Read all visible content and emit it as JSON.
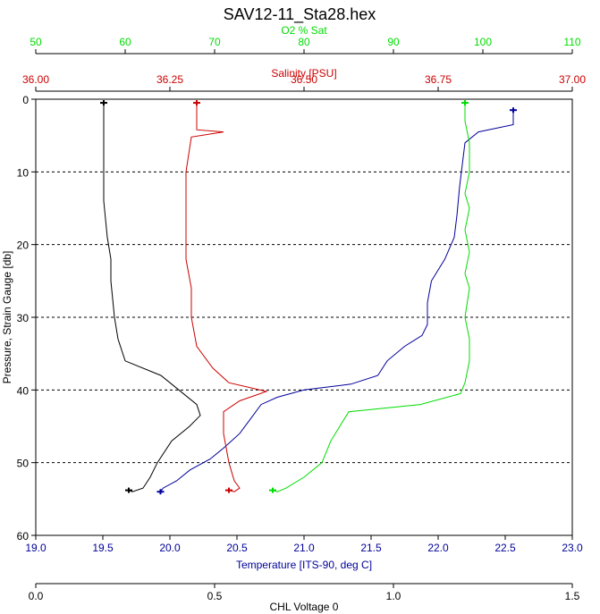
{
  "chart_data": {
    "type": "line",
    "title": "SAV12-11_Sta28.hex",
    "colors": {
      "oxygen": "#00dd00",
      "salinity": "#cc0000",
      "temperature": "#000099",
      "chl": "#000000",
      "grid": "#000000"
    },
    "y_axis": {
      "label": "Pressure, Strain Gauge [db]",
      "range": [
        0,
        60
      ],
      "inverted": true,
      "ticks": [
        "0",
        "10",
        "20",
        "30",
        "40",
        "50",
        "60"
      ],
      "gridlines": [
        10,
        20,
        30,
        40,
        50
      ]
    },
    "x_axes": [
      {
        "key": "oxygen",
        "label": "O2 % Sat",
        "position": "top-1",
        "range": [
          50,
          110
        ],
        "ticks": [
          "50",
          "60",
          "70",
          "80",
          "90",
          "100",
          "110"
        ]
      },
      {
        "key": "salinity",
        "label": "Salinity [PSU]",
        "position": "top-2",
        "range": [
          36.0,
          37.0
        ],
        "ticks": [
          "36.00",
          "36.25",
          "36.50",
          "36.75",
          "37.00"
        ]
      },
      {
        "key": "temperature",
        "label": "Temperature [ITS-90, deg C]",
        "position": "bottom-1",
        "range": [
          19.0,
          23.0
        ],
        "ticks": [
          "19.0",
          "19.5",
          "20.0",
          "20.5",
          "21.0",
          "21.5",
          "22.0",
          "22.5",
          "23.0"
        ]
      },
      {
        "key": "chl",
        "label": "CHL Voltage 0",
        "position": "bottom-2",
        "range": [
          0.0,
          1.5
        ],
        "ticks": [
          "0.0",
          "0.5",
          "1.0",
          "1.5"
        ]
      }
    ],
    "series": [
      {
        "key": "temperature",
        "points": [
          [
            22.56,
            1.5
          ],
          [
            22.56,
            3.5
          ],
          [
            22.3,
            4.5
          ],
          [
            22.2,
            6
          ],
          [
            22.18,
            9
          ],
          [
            22.16,
            12
          ],
          [
            22.14,
            16
          ],
          [
            22.12,
            19
          ],
          [
            22.05,
            22
          ],
          [
            21.95,
            25
          ],
          [
            21.92,
            28
          ],
          [
            21.92,
            31
          ],
          [
            21.88,
            32.5
          ],
          [
            21.75,
            34
          ],
          [
            21.62,
            36
          ],
          [
            21.55,
            38
          ],
          [
            21.35,
            39.2
          ],
          [
            21.0,
            40.0
          ],
          [
            20.8,
            41
          ],
          [
            20.68,
            42
          ],
          [
            20.6,
            44
          ],
          [
            20.52,
            46
          ],
          [
            20.4,
            48
          ],
          [
            20.3,
            49.5
          ],
          [
            20.15,
            51
          ],
          [
            20.05,
            52.5
          ],
          [
            19.95,
            53.5
          ],
          [
            19.93,
            54
          ]
        ]
      },
      {
        "key": "salinity",
        "points": [
          [
            36.3,
            0.5
          ],
          [
            36.3,
            4.2
          ],
          [
            36.35,
            4.5
          ],
          [
            36.29,
            5.2
          ],
          [
            36.28,
            10
          ],
          [
            36.28,
            16
          ],
          [
            36.28,
            22
          ],
          [
            36.29,
            26
          ],
          [
            36.29,
            30
          ],
          [
            36.3,
            34
          ],
          [
            36.33,
            37
          ],
          [
            36.36,
            39
          ],
          [
            36.43,
            40.2
          ],
          [
            36.38,
            41.5
          ],
          [
            36.35,
            43
          ],
          [
            36.35,
            46
          ],
          [
            36.36,
            50
          ],
          [
            36.37,
            52.5
          ],
          [
            36.38,
            53.5
          ],
          [
            36.37,
            54
          ],
          [
            36.36,
            53.8
          ]
        ]
      },
      {
        "key": "oxygen",
        "points": [
          [
            98,
            0.5
          ],
          [
            98,
            3
          ],
          [
            98.5,
            6
          ],
          [
            98.5,
            10
          ],
          [
            98,
            13
          ],
          [
            98.5,
            15
          ],
          [
            98,
            18
          ],
          [
            98.5,
            21
          ],
          [
            98,
            24
          ],
          [
            98.5,
            26
          ],
          [
            98,
            30
          ],
          [
            98.5,
            33
          ],
          [
            98.5,
            36
          ],
          [
            98,
            39
          ],
          [
            97.5,
            40.5
          ],
          [
            93,
            42
          ],
          [
            85,
            43
          ],
          [
            84,
            45
          ],
          [
            83,
            47
          ],
          [
            82,
            50
          ],
          [
            80,
            52
          ],
          [
            78,
            53.5
          ],
          [
            77,
            54
          ],
          [
            76.5,
            53.8
          ]
        ]
      },
      {
        "key": "chl",
        "points": [
          [
            0.19,
            0.5
          ],
          [
            0.19,
            3
          ],
          [
            0.19,
            8
          ],
          [
            0.19,
            14
          ],
          [
            0.2,
            19
          ],
          [
            0.21,
            22
          ],
          [
            0.21,
            25
          ],
          [
            0.22,
            30
          ],
          [
            0.23,
            33
          ],
          [
            0.25,
            36
          ],
          [
            0.35,
            38
          ],
          [
            0.4,
            40
          ],
          [
            0.45,
            42
          ],
          [
            0.46,
            43.5
          ],
          [
            0.43,
            45
          ],
          [
            0.38,
            47
          ],
          [
            0.34,
            50
          ],
          [
            0.32,
            52
          ],
          [
            0.3,
            53.5
          ],
          [
            0.27,
            54
          ],
          [
            0.26,
            53.8
          ]
        ]
      }
    ]
  }
}
